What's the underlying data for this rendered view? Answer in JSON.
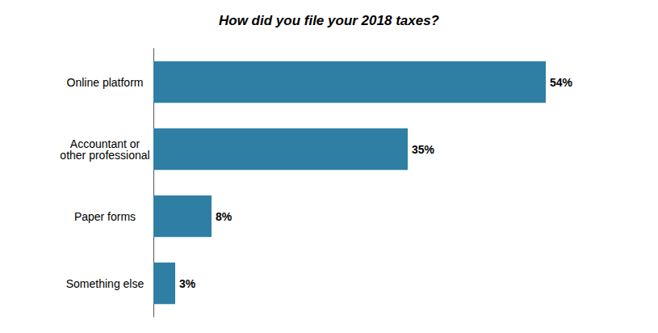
{
  "chart_data": {
    "type": "bar",
    "title": "How did you file your 2018 taxes?",
    "categories": [
      "Something else",
      "Paper forms",
      "Accountant or\nother professional",
      "Online platform"
    ],
    "values": [
      3,
      8,
      35,
      54
    ],
    "value_labels": [
      "3%",
      "8%",
      "35%",
      "54%"
    ],
    "color": "#2e7fa3",
    "orientation": "horizontal",
    "xlim": [
      0,
      65
    ],
    "data_labels": true,
    "tick_labels": "y",
    "grid": false
  }
}
